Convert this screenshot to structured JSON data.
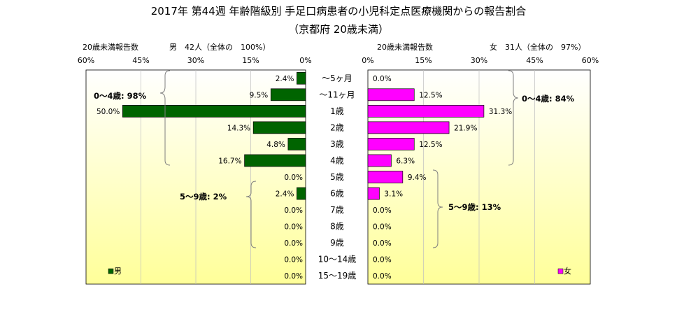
{
  "title": {
    "line1": "2017年 第44週 年齢階級別 手足口病患者の小児科定点医療機関からの報告割合",
    "line2": "（京都府 20歳未満）"
  },
  "colors": {
    "male": "#006400",
    "female": "#ff00ff",
    "plot_gradient_top": "#ffffff",
    "plot_gradient_bottom": "#ffff99",
    "grid": "#bfbfbf"
  },
  "chart_data": [
    {
      "type": "bar",
      "orientation": "horizontal",
      "direction": "right-to-left",
      "series": [
        {
          "name": "男",
          "values": [
            2.4,
            9.5,
            50.0,
            14.3,
            4.8,
            16.7,
            0.0,
            2.4,
            0.0,
            0.0,
            0.0,
            0.0,
            0.0
          ]
        }
      ],
      "data_labels": [
        "2.4%",
        "9.5%",
        "50.0%",
        "14.3%",
        "4.8%",
        "16.7%",
        "0.0%",
        "2.4%",
        "0.0%",
        "0.0%",
        "0.0%",
        "0.0%",
        "0.0%"
      ],
      "xlim": [
        0,
        60
      ],
      "x_ticks": [
        "60%",
        "45%",
        "30%",
        "15%",
        "0%"
      ],
      "axis_caption": "20歳未満報告数",
      "summary": "男　42人（全体の　100%）",
      "legend": "男",
      "legend_position": "bottom-left",
      "group_labels": [
        {
          "text": "0～4歳: 98%"
        },
        {
          "text": "5～9歳: 2%"
        }
      ]
    },
    {
      "type": "bar",
      "orientation": "horizontal",
      "direction": "left-to-right",
      "series": [
        {
          "name": "女",
          "values": [
            0.0,
            12.5,
            31.3,
            21.9,
            12.5,
            6.3,
            9.4,
            3.1,
            0.0,
            0.0,
            0.0,
            0.0,
            0.0
          ]
        }
      ],
      "data_labels": [
        "0.0%",
        "12.5%",
        "31.3%",
        "21.9%",
        "12.5%",
        "6.3%",
        "9.4%",
        "3.1%",
        "0.0%",
        "0.0%",
        "0.0%",
        "0.0%",
        "0.0%"
      ],
      "xlim": [
        0,
        60
      ],
      "x_ticks": [
        "0%",
        "15%",
        "30%",
        "45%",
        "60%"
      ],
      "axis_caption": "20歳未満報告数",
      "summary": "女　31人（全体の　97%）",
      "legend": "女",
      "legend_position": "bottom-right",
      "group_labels": [
        {
          "text": "0～4歳: 84%"
        },
        {
          "text": "5～9歳: 13%"
        }
      ]
    }
  ],
  "categories": [
    "～5ヶ月",
    "～11ヶ月",
    "1歳",
    "2歳",
    "3歳",
    "4歳",
    "5歳",
    "6歳",
    "7歳",
    "8歳",
    "9歳",
    "10～14歳",
    "15～19歳"
  ]
}
